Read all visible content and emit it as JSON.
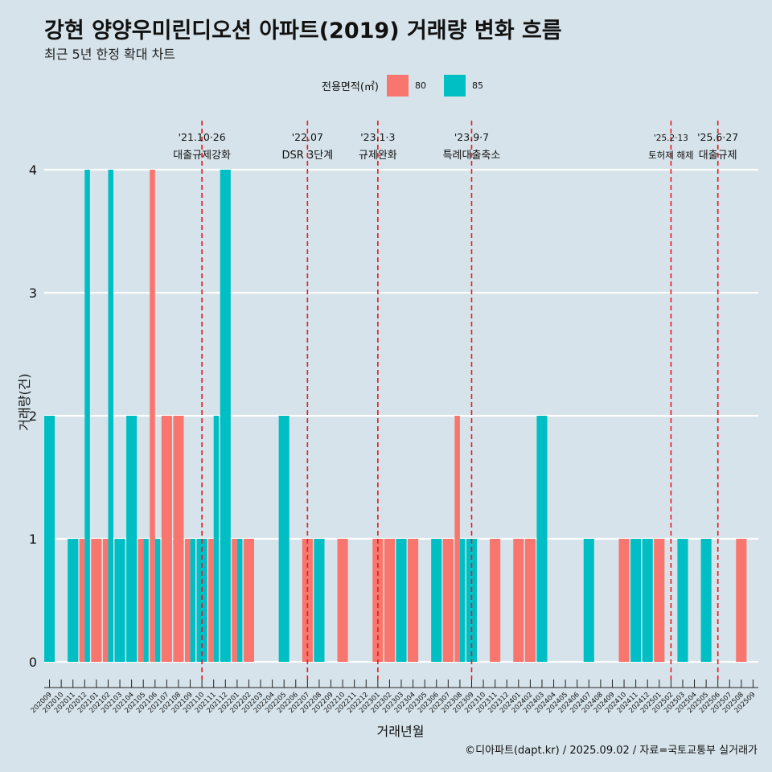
{
  "title": "강현 양양우미린디오션 아파트(2019) 거래량 변화 흐름",
  "subtitle": "최근 5년 한정 확대 차트",
  "legend": {
    "title": "전용면적(㎡)",
    "items": [
      {
        "label": "80",
        "color": "#f8766d"
      },
      {
        "label": "85",
        "color": "#00bfc4"
      }
    ]
  },
  "caption": "©디아파트(dapt.kr) / 2025.09.02 / 자료=국토교통부 실거래가",
  "chart_data": {
    "type": "bar",
    "xlabel": "거래년월",
    "ylabel": "거래량(건)",
    "ylim": [
      0,
      4
    ],
    "yticks": [
      0,
      1,
      2,
      3,
      4
    ],
    "categories": [
      "202009",
      "202010",
      "202011",
      "202012",
      "202101",
      "202102",
      "202103",
      "202104",
      "202105",
      "202106",
      "202107",
      "202108",
      "202109",
      "202110",
      "202111",
      "202112",
      "202201",
      "202202",
      "202203",
      "202204",
      "202205",
      "202206",
      "202207",
      "202208",
      "202209",
      "202210",
      "202211",
      "202212",
      "202301",
      "202302",
      "202303",
      "202304",
      "202305",
      "202306",
      "202307",
      "202308",
      "202309",
      "202310",
      "202311",
      "202312",
      "202401",
      "202402",
      "202403",
      "202404",
      "202405",
      "202406",
      "202407",
      "202408",
      "202409",
      "202410",
      "202411",
      "202412",
      "202501",
      "202502",
      "202503",
      "202504",
      "202505",
      "202506",
      "202507",
      "202508",
      "202509"
    ],
    "series": [
      {
        "name": "80",
        "color": "#f8766d",
        "values": [
          0,
          0,
          0,
          1,
          1,
          1,
          0,
          0,
          1,
          4,
          2,
          2,
          1,
          0,
          1,
          0,
          1,
          1,
          0,
          0,
          0,
          0,
          1,
          0,
          0,
          1,
          0,
          0,
          1,
          1,
          0,
          1,
          0,
          0,
          1,
          2,
          0,
          0,
          1,
          0,
          1,
          1,
          0,
          0,
          0,
          0,
          0,
          0,
          0,
          1,
          0,
          0,
          1,
          0,
          0,
          0,
          0,
          0,
          0,
          1,
          0
        ]
      },
      {
        "name": "85",
        "color": "#00bfc4",
        "values": [
          2,
          0,
          1,
          4,
          0,
          4,
          1,
          2,
          1,
          1,
          0,
          0,
          1,
          1,
          2,
          4,
          1,
          0,
          0,
          0,
          2,
          0,
          0,
          1,
          0,
          0,
          0,
          0,
          0,
          0,
          1,
          0,
          0,
          1,
          0,
          1,
          1,
          0,
          0,
          0,
          0,
          0,
          2,
          0,
          0,
          0,
          1,
          0,
          0,
          0,
          1,
          1,
          0,
          0,
          1,
          0,
          1,
          0,
          0,
          0,
          0
        ]
      }
    ],
    "events": [
      {
        "month": "202110",
        "date": "'21.10·26",
        "label": "대출규제강화"
      },
      {
        "month": "202207",
        "date": "'22.07",
        "label": "DSR 3단계"
      },
      {
        "month": "202301",
        "date": "'23.1·3",
        "label": "규제완화"
      },
      {
        "month": "202309",
        "date": "'23.9·7",
        "label": "특례대출축소"
      },
      {
        "month": "202502",
        "date": "'25.2·13",
        "label": "토허제 해제"
      },
      {
        "month": "202506",
        "date": "'25.6·27",
        "label": "대출규제"
      }
    ]
  }
}
